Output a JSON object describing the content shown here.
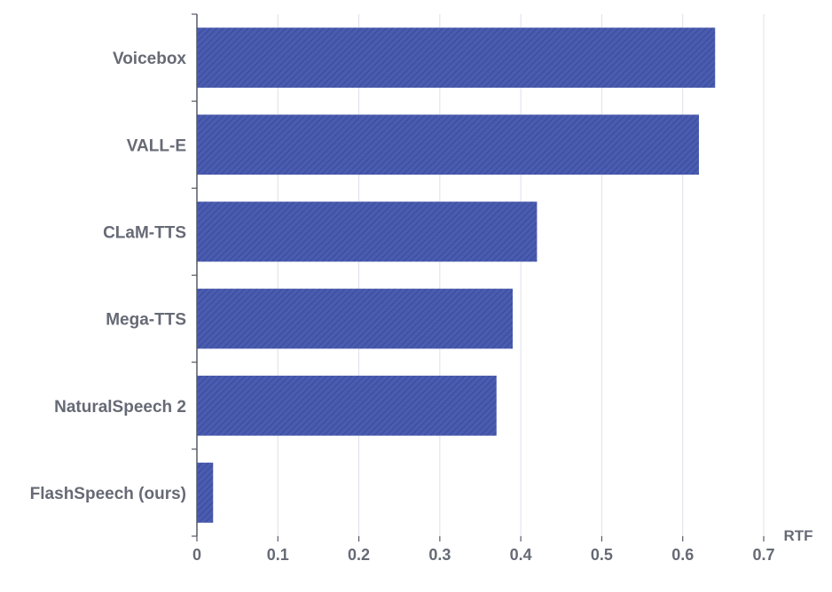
{
  "chart_data": {
    "type": "bar",
    "orientation": "horizontal",
    "categories": [
      "Voicebox",
      "VALL-E",
      "CLaM-TTS",
      "Mega-TTS",
      "NaturalSpeech 2",
      "FlashSpeech (ours)"
    ],
    "values": [
      0.64,
      0.62,
      0.42,
      0.39,
      0.37,
      0.02
    ],
    "title": "",
    "xlabel": "RTF",
    "ylabel": "",
    "xlim": [
      0,
      0.7
    ],
    "xticks": [
      "0",
      "0.1",
      "0.2",
      "0.3",
      "0.4",
      "0.5",
      "0.6",
      "0.7"
    ],
    "grid": "vertical",
    "bar_color": "#4a5cb0",
    "bar_hatch_color": "#3a4a99"
  }
}
